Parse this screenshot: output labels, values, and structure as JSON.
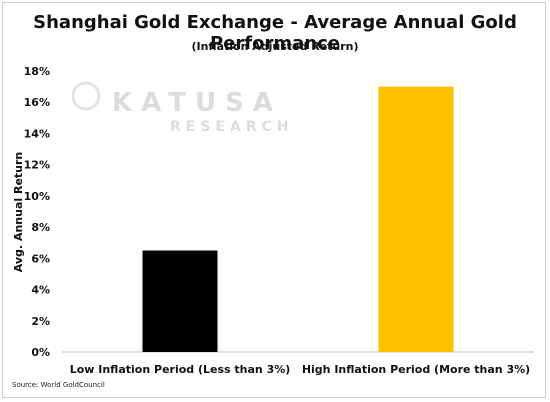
{
  "chart_data": {
    "type": "bar",
    "title": "Shanghai Gold Exchange - Average Annual Gold Performance",
    "subtitle": "(Inflation Adjusted Return)",
    "xlabel": "",
    "ylabel": "Avg. Annual Return",
    "categories": [
      "Low Inflation Period (Less than 3%)",
      "High Inflation Period (More than 3%)"
    ],
    "values": [
      6.5,
      17.0
    ],
    "colors": [
      "#000000",
      "#ffc000"
    ],
    "ylim": [
      0,
      18
    ],
    "yticks": [
      0,
      2,
      4,
      6,
      8,
      10,
      12,
      14,
      16,
      18
    ],
    "ytick_format": "percent",
    "grid": false,
    "legend": "none"
  },
  "watermark": {
    "line1": "KATUSA",
    "line2": "RESEARCH"
  },
  "source": "Source: World GoldCouncil"
}
